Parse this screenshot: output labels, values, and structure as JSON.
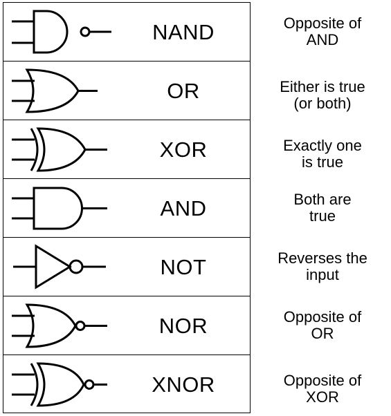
{
  "gates": [
    {
      "name": "NAND",
      "description": "Opposite of\nAND",
      "symbol": "nand-gate-icon"
    },
    {
      "name": "OR",
      "description": "Either is true\n(or both)",
      "symbol": "or-gate-icon"
    },
    {
      "name": "XOR",
      "description": "Exactly one\nis true",
      "symbol": "xor-gate-icon"
    },
    {
      "name": "AND",
      "description": "Both are\ntrue",
      "symbol": "and-gate-icon"
    },
    {
      "name": "NOT",
      "description": "Reverses the\ninput",
      "symbol": "not-gate-icon"
    },
    {
      "name": "NOR",
      "description": "Opposite of\nOR",
      "symbol": "nor-gate-icon"
    },
    {
      "name": "XNOR",
      "description": "Opposite of\nXOR",
      "symbol": "xnor-gate-icon"
    }
  ]
}
